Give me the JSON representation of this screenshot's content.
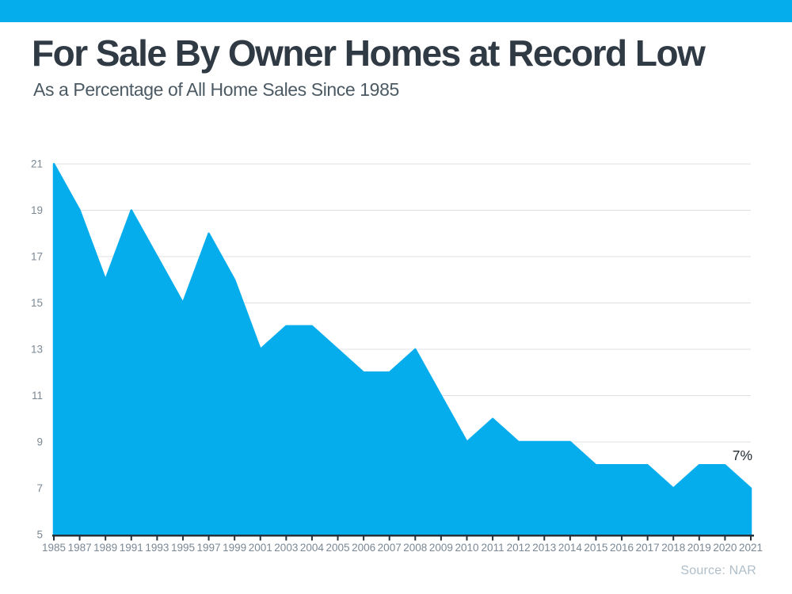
{
  "page": {
    "top_bar_color": "#06ADEC",
    "background_color": "#FFFFFF"
  },
  "header": {
    "title": "For Sale By Owner Homes at Record Low",
    "subtitle": "As a Percentage of All Home Sales Since 1985"
  },
  "chart_data": {
    "type": "area",
    "title": "For Sale By Owner Homes at Record Low",
    "subtitle": "As a Percentage of All Home Sales Since 1985",
    "categories": [
      "1985",
      "1987",
      "1989",
      "1991",
      "1993",
      "1995",
      "1997",
      "1999",
      "2001",
      "2003",
      "2004",
      "2005",
      "2006",
      "2007",
      "2008",
      "2009",
      "2010",
      "2011",
      "2012",
      "2013",
      "2014",
      "2015",
      "2016",
      "2017",
      "2018",
      "2019",
      "2020",
      "2021"
    ],
    "values": [
      21,
      19,
      16,
      19,
      17,
      15,
      18,
      16,
      13,
      14,
      14,
      13,
      12,
      12,
      13,
      11,
      9,
      10,
      9,
      9,
      9,
      8,
      8,
      8,
      7,
      8,
      8,
      7
    ],
    "ylim": [
      5,
      21
    ],
    "yticks": [
      5,
      7,
      9,
      11,
      13,
      15,
      17,
      19,
      21
    ],
    "grid": true,
    "legend": "none",
    "area_color": "#06ADEC",
    "gridline_color": "#DCE0E4",
    "axis_line_color": "#24303A",
    "tick_label_color": "#7B8894",
    "annotation": {
      "text": "7%",
      "color": "#222B33"
    }
  },
  "footer": {
    "source": "Source: NAR"
  }
}
